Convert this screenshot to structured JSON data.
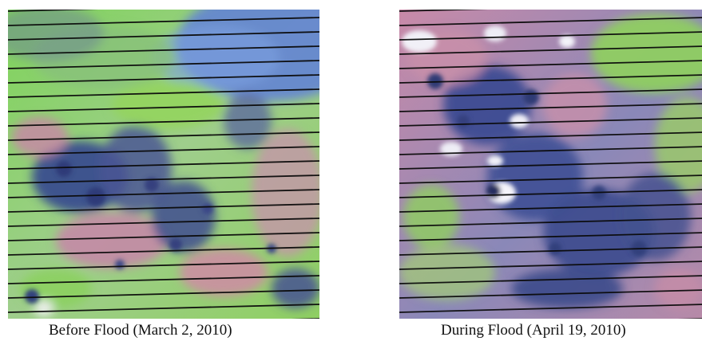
{
  "figure": {
    "panels": [
      {
        "caption": "Before Flood (March 2, 2010)"
      },
      {
        "caption": "During Flood (April 19, 2010)"
      }
    ]
  },
  "colors": {
    "vegetation_green": "#8ad15a",
    "water_blue": "#3e4e8f",
    "land_pink": "#c58aa3",
    "cloud_white": "#f2f2f7",
    "scanline_black": "#0b0b0b"
  }
}
